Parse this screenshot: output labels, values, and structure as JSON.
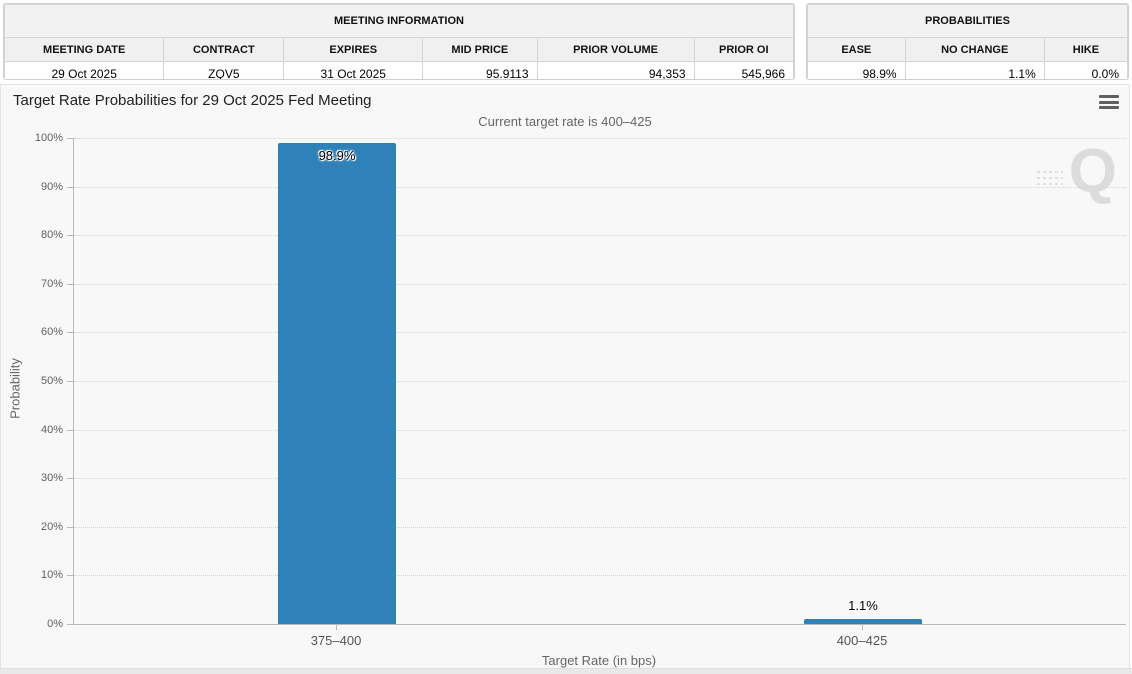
{
  "meeting_info": {
    "title": "MEETING INFORMATION",
    "headers": [
      "MEETING DATE",
      "CONTRACT",
      "EXPIRES",
      "MID PRICE",
      "PRIOR VOLUME",
      "PRIOR OI"
    ],
    "values": [
      "29 Oct 2025",
      "ZQV5",
      "31 Oct 2025",
      "95.9113",
      "94,353",
      "545,966"
    ]
  },
  "probabilities": {
    "title": "PROBABILITIES",
    "headers": [
      "EASE",
      "NO CHANGE",
      "HIKE"
    ],
    "values": [
      "98.9%",
      "1.1%",
      "0.0%"
    ]
  },
  "chart": {
    "title": "Target Rate Probabilities for 29 Oct 2025 Fed Meeting",
    "subtitle": "Current target rate is 400–425",
    "watermark_letter": "Q"
  },
  "icons": {
    "context_menu": "hamburger-menu-icon"
  },
  "colors": {
    "bar": "#2f81ba",
    "grid": "#d4d4d4",
    "axis": "#b9b9b9",
    "panel_background": "#f8f8f8"
  },
  "chart_data": {
    "type": "bar",
    "title": "Target Rate Probabilities for 29 Oct 2025 Fed Meeting",
    "subtitle": "Current target rate is 400–425",
    "categories": [
      "375–400",
      "400–425"
    ],
    "values": [
      98.9,
      1.1
    ],
    "value_labels": [
      "98.9%",
      "1.1%"
    ],
    "xlabel": "Target Rate (in bps)",
    "ylabel": "Probability",
    "ylim": [
      0,
      100
    ],
    "ytick_step": 10,
    "ytick_suffix": "%",
    "grid": true,
    "legend": false,
    "bar_color": "#2f81ba"
  }
}
